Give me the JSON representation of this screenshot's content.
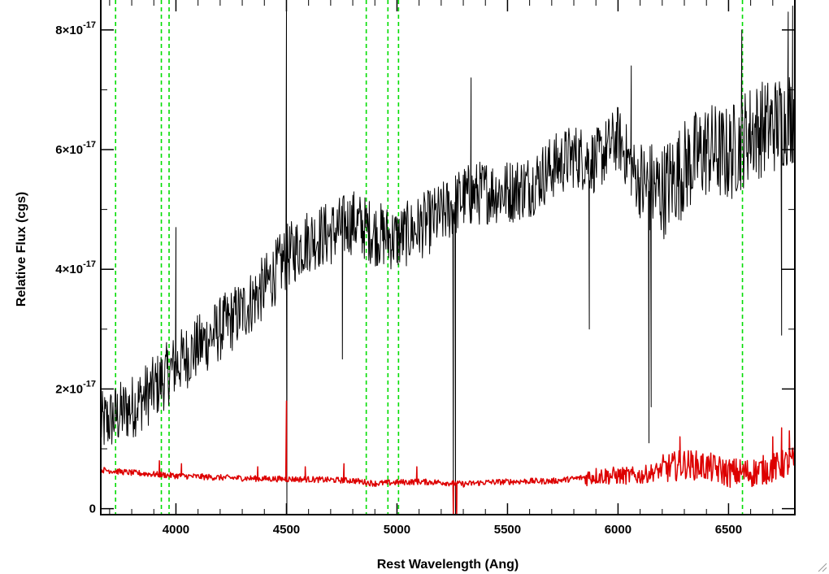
{
  "chart_data": {
    "type": "line",
    "xlabel": "Rest Wavelength (Ang)",
    "ylabel": "Relative Flux (cgs)",
    "xlim": [
      3660,
      6800
    ],
    "ylim": [
      -1e-18,
      8.5e-17
    ],
    "x_ticks": [
      {
        "value": 4000,
        "label": "4000"
      },
      {
        "value": 4500,
        "label": "4500"
      },
      {
        "value": 5000,
        "label": "5000"
      },
      {
        "value": 5500,
        "label": "5500"
      },
      {
        "value": 6000,
        "label": "6000"
      },
      {
        "value": 6500,
        "label": "6500"
      }
    ],
    "y_ticks": [
      {
        "value": 0,
        "mantissa": "0",
        "exponent": ""
      },
      {
        "value": 2e-17,
        "mantissa": "2×10",
        "exponent": "-17"
      },
      {
        "value": 4e-17,
        "mantissa": "4×10",
        "exponent": "-17"
      },
      {
        "value": 6e-17,
        "mantissa": "6×10",
        "exponent": "-17"
      },
      {
        "value": 8e-17,
        "mantissa": "8×10",
        "exponent": "-17"
      }
    ],
    "reference_lines": {
      "color": "#00dd00",
      "style": "dashed",
      "x": [
        3727,
        3934,
        3969,
        4861,
        4959,
        5007,
        6563
      ]
    },
    "series": [
      {
        "color": "#000000",
        "continuum_x": [
          3660,
          3800,
          3900,
          4000,
          4100,
          4200,
          4300,
          4400,
          4500,
          4600,
          4700,
          4800,
          4900,
          5000,
          5100,
          5200,
          5300,
          5400,
          5500,
          5600,
          5700,
          5800,
          5900,
          6000,
          6100,
          6200,
          6300,
          6400,
          6500,
          6600,
          6700,
          6800
        ],
        "continuum_y": [
          1.4e-17,
          1.7e-17,
          2e-17,
          2.4e-17,
          2.7e-17,
          3e-17,
          3.3e-17,
          3.7e-17,
          4.2e-17,
          4.5e-17,
          4.6e-17,
          4.8e-17,
          4.6e-17,
          4.5e-17,
          4.7e-17,
          4.9e-17,
          5.2e-17,
          5.3e-17,
          5.3e-17,
          5.4e-17,
          5.7e-17,
          5.9e-17,
          5.8e-17,
          6.2e-17,
          5.4e-17,
          5.3e-17,
          5.7e-17,
          6e-17,
          5.9e-17,
          6.3e-17,
          6.4e-17,
          6.6e-17
        ],
        "noise_amplitude": 5.5e-18,
        "features": [
          {
            "x": 4000,
            "y": 4.7e-17
          },
          {
            "x": 4500,
            "y": 8.5e-17
          },
          {
            "x": 4502,
            "y": -1e-18
          },
          {
            "x": 4753,
            "y": 2.5e-17
          },
          {
            "x": 5255,
            "y": -1e-18
          },
          {
            "x": 5265,
            "y": -1e-18
          },
          {
            "x": 5335,
            "y": 7.2e-17
          },
          {
            "x": 5870,
            "y": 3e-17
          },
          {
            "x": 6060,
            "y": 7.4e-17
          },
          {
            "x": 6140,
            "y": 1.1e-17
          },
          {
            "x": 6150,
            "y": 1.7e-17
          },
          {
            "x": 6560,
            "y": 8e-17
          },
          {
            "x": 6740,
            "y": 2.9e-17
          },
          {
            "x": 6770,
            "y": 8.3e-17
          },
          {
            "x": 6790,
            "y": 8.4e-17
          }
        ]
      },
      {
        "color": "#dd0000",
        "continuum_x": [
          3660,
          3800,
          4000,
          4200,
          4400,
          4600,
          4800,
          4900,
          5000,
          5100,
          5200,
          5300,
          5400,
          5500,
          5600,
          5700,
          5800,
          5900,
          6000,
          6100,
          6200,
          6300,
          6400,
          6500,
          6600,
          6700,
          6800
        ],
        "continuum_y": [
          6.5e-18,
          6e-18,
          5.5e-18,
          5.2e-18,
          5e-18,
          4.9e-18,
          4.7e-18,
          4.2e-18,
          4.4e-18,
          4.5e-18,
          4.4e-18,
          4.1e-18,
          4.4e-18,
          4.5e-18,
          4.6e-18,
          4.6e-18,
          5e-18,
          5.5e-18,
          5.5e-18,
          5.5e-18,
          6.5e-18,
          7.5e-18,
          7e-18,
          6e-18,
          6e-18,
          6.8e-18,
          8e-18
        ],
        "noise_amplitude": 5e-19,
        "features": [
          {
            "x": 3925,
            "y": 8e-18
          },
          {
            "x": 4025,
            "y": 7.5e-18
          },
          {
            "x": 4370,
            "y": 7e-18
          },
          {
            "x": 4500,
            "y": 1.8e-17
          },
          {
            "x": 4585,
            "y": 7e-18
          },
          {
            "x": 4760,
            "y": 7.5e-18
          },
          {
            "x": 5090,
            "y": 7e-18
          },
          {
            "x": 5255,
            "y": -1e-18
          },
          {
            "x": 5270,
            "y": -1e-18
          },
          {
            "x": 6280,
            "y": 1.2e-17
          },
          {
            "x": 6700,
            "y": 1.2e-17
          },
          {
            "x": 6740,
            "y": 1.35e-17
          },
          {
            "x": 6775,
            "y": 1.3e-17
          }
        ]
      }
    ]
  }
}
